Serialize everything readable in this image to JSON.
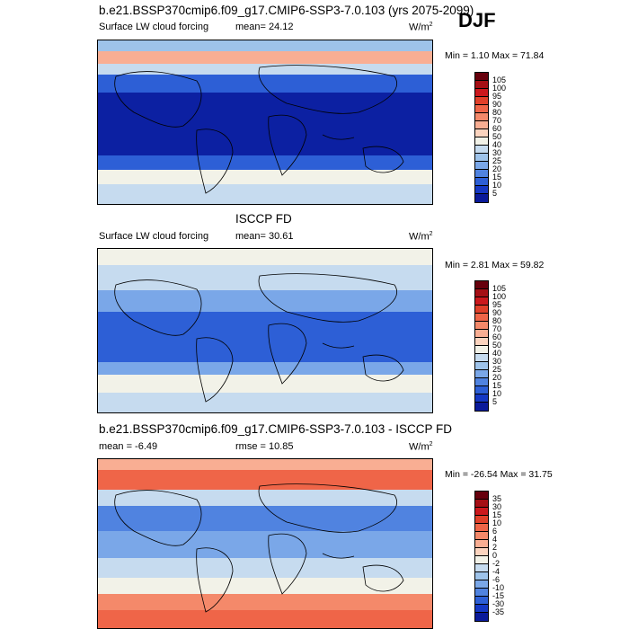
{
  "season": "DJF",
  "panels": [
    {
      "title": "b.e21.BSSP370cmip6.f09_g17.CMIP6-SSP3-7.0.103 (yrs 2075-2099)",
      "left_label": "Surface LW cloud forcing",
      "mid_label": "mean=  24.12",
      "units": "W/m",
      "units_sup": "2",
      "minmax": "Min =   1.10 Max =  71.84",
      "colorbar_key": "abs"
    },
    {
      "title": "ISCCP FD",
      "left_label": "Surface LW cloud forcing",
      "mid_label": "mean=  30.61",
      "units": "W/m",
      "units_sup": "2",
      "minmax": "Min =   2.81 Max =  59.82",
      "colorbar_key": "abs"
    },
    {
      "title": "b.e21.BSSP370cmip6.f09_g17.CMIP6-SSP3-7.0.103 - ISCCP FD",
      "left_label": "mean =  -6.49",
      "mid_label": "rmse =  10.85",
      "units": "W/m",
      "units_sup": "2",
      "minmax": "Min = -26.54 Max =  31.75",
      "colorbar_key": "diff"
    }
  ],
  "colorbars": {
    "abs": {
      "labels": [
        "105",
        "100",
        "95",
        "90",
        "80",
        "70",
        "60",
        "50",
        "40",
        "30",
        "25",
        "20",
        "15",
        "10",
        "5"
      ],
      "colors": [
        "#67000d",
        "#a50f15",
        "#cb181d",
        "#e0402a",
        "#ef6548",
        "#f4896a",
        "#f9ae93",
        "#fcd4bf",
        "#f2f2e8",
        "#c6dbef",
        "#9ec3ea",
        "#7aa7e8",
        "#5083e0",
        "#2d5fd6",
        "#1538c4",
        "#0a1a9a"
      ]
    },
    "diff": {
      "labels": [
        "35",
        "30",
        "15",
        "10",
        "6",
        "4",
        "2",
        "0",
        "-2",
        "-4",
        "-6",
        "-10",
        "-15",
        "-30",
        "-35"
      ],
      "colors": [
        "#67000d",
        "#a50f15",
        "#cb181d",
        "#e0402a",
        "#ef6548",
        "#f4896a",
        "#f9ae93",
        "#fcd4bf",
        "#f2f2e8",
        "#c6dbef",
        "#9ec3ea",
        "#7aa7e8",
        "#5083e0",
        "#2d5fd6",
        "#1538c4",
        "#0a1a9a"
      ]
    }
  }
}
